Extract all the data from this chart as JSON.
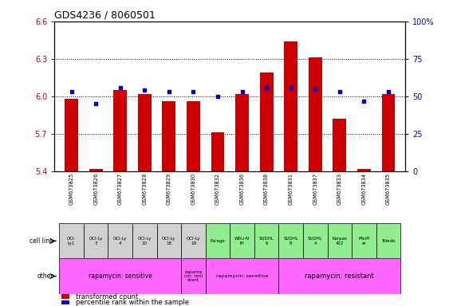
{
  "title": "GDS4236 / 8060501",
  "samples": [
    "GSM673825",
    "GSM673826",
    "GSM673827",
    "GSM673828",
    "GSM673829",
    "GSM673830",
    "GSM673832",
    "GSM673836",
    "GSM673838",
    "GSM673831",
    "GSM673837",
    "GSM673833",
    "GSM673834",
    "GSM673835"
  ],
  "red_values": [
    5.98,
    5.42,
    6.05,
    6.02,
    5.96,
    5.96,
    5.71,
    6.02,
    6.19,
    6.44,
    6.31,
    5.82,
    5.42,
    6.02
  ],
  "blue_values": [
    53,
    45,
    56,
    54,
    53,
    53,
    50,
    53,
    56,
    56,
    55,
    53,
    47,
    53
  ],
  "ylim_left": [
    5.4,
    6.6
  ],
  "ylim_right": [
    0,
    100
  ],
  "yticks_left": [
    5.4,
    5.7,
    6.0,
    6.3,
    6.6
  ],
  "yticks_right": [
    0,
    25,
    50,
    75,
    100
  ],
  "grid_yticks": [
    5.7,
    6.0,
    6.3
  ],
  "cell_lines": [
    "OCI-\nLy1",
    "OCI-Ly\n3",
    "OCI-Ly\n4",
    "OCI-Ly\n10",
    "OCI-Ly\n18",
    "OCI-Ly\n19",
    "Farage",
    "WSU-N\nIH",
    "SUDHL\n6",
    "SUDHL\n8",
    "SUDHL\n4",
    "Karpas\n422",
    "Pfeiff\ner",
    "Toledo"
  ],
  "cell_line_colors": [
    "#d0d0d0",
    "#d0d0d0",
    "#d0d0d0",
    "#d0d0d0",
    "#d0d0d0",
    "#d0d0d0",
    "#90ee90",
    "#90ee90",
    "#90ee90",
    "#90ee90",
    "#90ee90",
    "#90ee90",
    "#90ee90",
    "#90ee90"
  ],
  "bar_color": "#cc0000",
  "dot_color": "#0000cc",
  "pink": "#ff66ff",
  "sample_bg": "#c8c8c8",
  "white": "#ffffff"
}
